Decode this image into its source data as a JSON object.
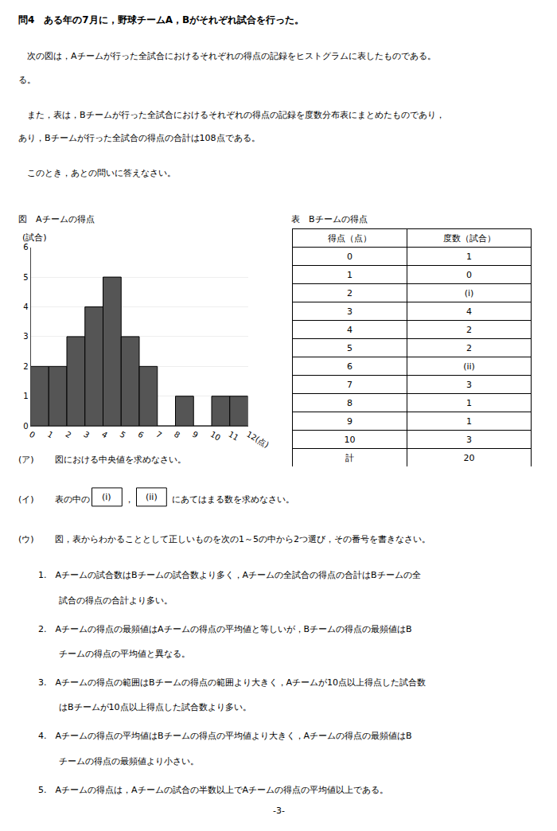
{
  "chart_data": {
    "type": "histogram",
    "title": "問4　ある年の7月に，野球チームA，Bがそれぞれ試合を行った。",
    "bins": [
      0,
      1,
      2,
      3,
      4,
      5,
      6,
      7,
      8,
      9,
      10,
      11,
      12
    ],
    "values": [
      2,
      2,
      3,
      4,
      5,
      3,
      2,
      0,
      1,
      0,
      1,
      1
    ],
    "colors": [
      "#555555",
      "#555555",
      "#555555",
      "#555555",
      "#555555",
      "#555555",
      "#555555",
      "#ffffff",
      "#555555",
      "#ffffff",
      "#555555",
      "#555555"
    ],
    "y_label": "(試合)",
    "xlim": [
      0,
      12
    ],
    "xticks": [
      0,
      1,
      2,
      3,
      4,
      5,
      6,
      7,
      8,
      9,
      10,
      11,
      {
        "value": 12,
        "label": "12(点)"
      }
    ],
    "ylim": [
      0,
      6
    ],
    "yticks": [
      0,
      1,
      2,
      3,
      4,
      5,
      6
    ],
    "grid": "y",
    "table": {
      "headers": [
        "得点（点）",
        "度数（試合）"
      ],
      "scores": [
        0,
        1,
        2,
        3,
        4,
        5,
        6,
        7,
        8,
        9,
        10
      ],
      "freqs": [
        1,
        0,
        "(i)",
        4,
        2,
        2,
        "(ii)",
        3,
        1,
        1,
        3
      ],
      "total_label": "計",
      "total_value": 20
    },
    "annotations": [
      "　次の図は，Aチームが行った全試合におけるそれぞれの得点の記録をヒストグラムに表したものである。",
      "る。",
      "　また，表は，Bチームが行った全試合におけるそれぞれの得点の記録を度数分布表にまとめたものであり，",
      "あり，Bチームが行った全試合の得点の合計は108点である。",
      "　このとき，あとの問いに答えなさい。",
      "図　Aチームの得点",
      "表　Bチームの得点",
      "(ア)",
      "図における中央値を求めなさい。",
      "(イ)",
      "表の中の",
      "(i)",
      "，",
      "(ii)",
      "にあてはまる数を求めなさい。",
      "(ウ)",
      "図，表からわかることとして正しいものを次の1～5の中から2つ選び，その番号を書きなさい。",
      "1.　Aチームの試合数はBチームの試合数より多く，Aチームの全試合の得点の合計はBチームの全",
      "　試合の得点の合計より多い。",
      "2.　Aチームの得点の最頻値はAチームの得点の平均値と等しいが，Bチームの得点の最頻値はB",
      "　チームの得点の平均値と異なる。",
      "3.　Aチームの得点の範囲はBチームの得点の範囲より大きく，Aチームが10点以上得点した試合数",
      "　はBチームが10点以上得点した試合数より多い。",
      "4.　Aチームの得点の平均値はBチームの得点の平均値より大きく，Aチームの得点の最頻値はB",
      "　チームの得点の最頻値より小さい。",
      "5.　Aチームの得点は，Aチームの試合の半数以上でAチームの得点の平均値以上である。",
      "-3-"
    ]
  }
}
